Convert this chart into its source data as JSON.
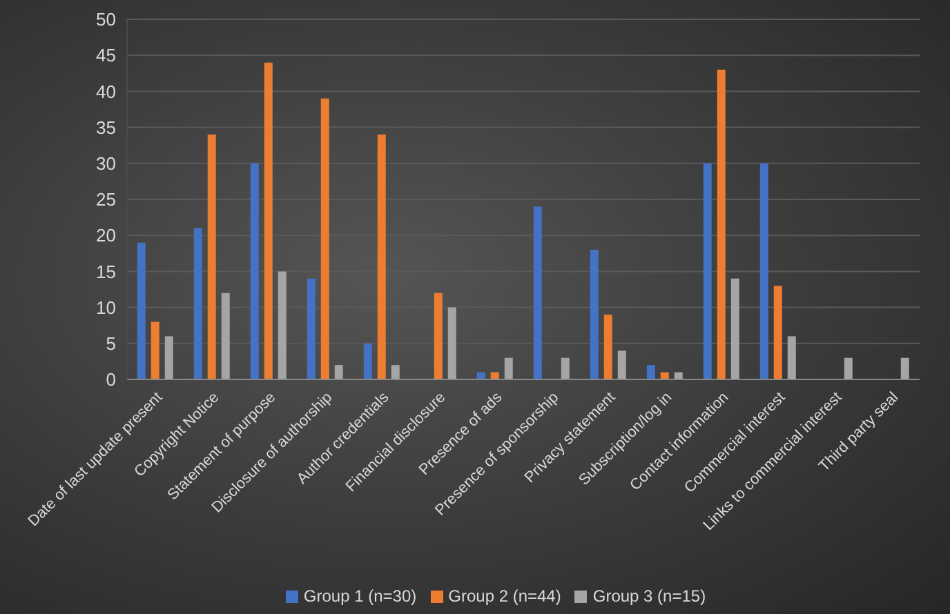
{
  "chart_data": {
    "type": "bar",
    "categories": [
      "Date of last update present",
      "Copyright Notice",
      "Statement of purpose",
      "Disclosure of authorship",
      "Author credentials",
      "Financial disclosure",
      "Presence of ads",
      "Presence of sponsorship",
      "Privacy statement",
      "Subscription/log in",
      "Contact information",
      "Commercial interest",
      "Links to commercial interest",
      "Third party seal"
    ],
    "series": [
      {
        "name": "Group 1 (n=30)",
        "color": "#4472c4",
        "values": [
          19,
          21,
          30,
          14,
          5,
          0,
          1,
          24,
          18,
          2,
          30,
          30,
          0,
          0
        ]
      },
      {
        "name": "Group 2 (n=44)",
        "color": "#ed7d31",
        "values": [
          8,
          34,
          44,
          39,
          34,
          12,
          1,
          0,
          9,
          1,
          43,
          13,
          0,
          0
        ]
      },
      {
        "name": "Group 3 (n=15)",
        "color": "#a5a5a5",
        "values": [
          6,
          12,
          15,
          2,
          2,
          10,
          3,
          3,
          4,
          1,
          14,
          6,
          3,
          3
        ]
      }
    ],
    "ylim": [
      0,
      50
    ],
    "yticks": [
      0,
      5,
      10,
      15,
      20,
      25,
      30,
      35,
      40,
      45,
      50
    ],
    "grid": "y",
    "legend": "bottom"
  }
}
